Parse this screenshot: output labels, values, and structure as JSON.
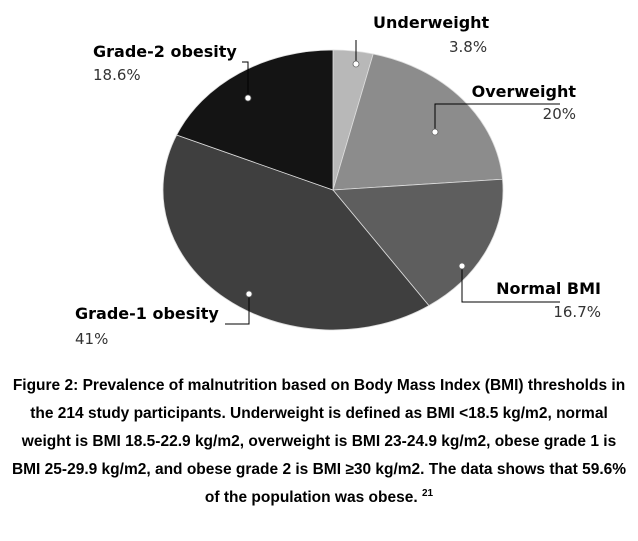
{
  "chart_data": {
    "type": "pie",
    "title": "",
    "slices": [
      {
        "label": "Underweight",
        "value_text": "3.8%",
        "value": 3.8,
        "color": "#b8b8b8"
      },
      {
        "label": "Overweight",
        "value_text": "20%",
        "value": 20,
        "color": "#8c8c8c"
      },
      {
        "label": "Normal BMI",
        "value_text": "16.7%",
        "value": 16.7,
        "color": "#5e5e5e"
      },
      {
        "label": "Grade-1 obesity",
        "value_text": "41%",
        "value": 41,
        "color": "#3f3f3f"
      },
      {
        "label": "Grade-2 obesity",
        "value_text": "18.6%",
        "value": 18.6,
        "color": "#141414"
      }
    ]
  },
  "caption": {
    "text": "Figure 2: Prevalence of malnutrition based on Body Mass Index (BMI) thresholds in the 214 study participants. Underweight is defined as BMI <18.5 kg/m2, normal weight is BMI 18.5-22.9 kg/m2, overweight is BMI 23-24.9 kg/m2, obese grade 1 is BMI 25-29.9 kg/m2, and obese grade 2 is BMI ≥30 kg/m2. The data shows that 59.6% of the population was obese.",
    "reference": "21"
  }
}
